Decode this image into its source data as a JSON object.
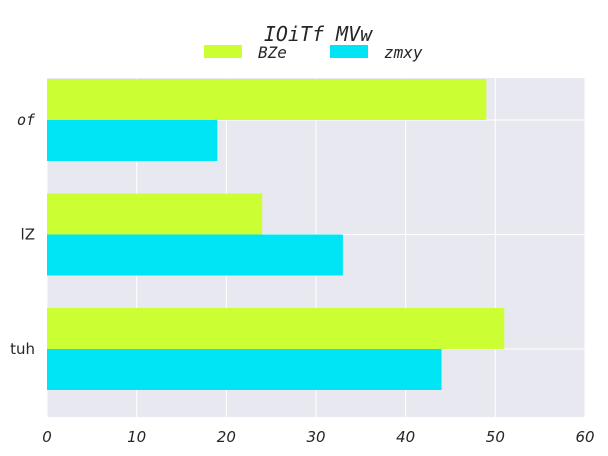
{
  "chart_data": {
    "type": "bar",
    "orientation": "horizontal",
    "title": "IOiTf  MVw",
    "xlabel": "",
    "ylabel": "",
    "categories": [
      "of",
      "lZ",
      "tuh"
    ],
    "series": [
      {
        "name": "BZe",
        "color": "#ccff33",
        "values": [
          49,
          24,
          51
        ]
      },
      {
        "name": "zmxy",
        "color": "#00e5f5",
        "values": [
          19,
          33,
          44
        ]
      }
    ],
    "xlim": [
      0,
      60
    ],
    "xticks": [
      "0",
      "10",
      "20",
      "30",
      "40",
      "50",
      "60"
    ],
    "grid": true,
    "legend_position": "top-center",
    "background_color": "#e8e8f0"
  }
}
